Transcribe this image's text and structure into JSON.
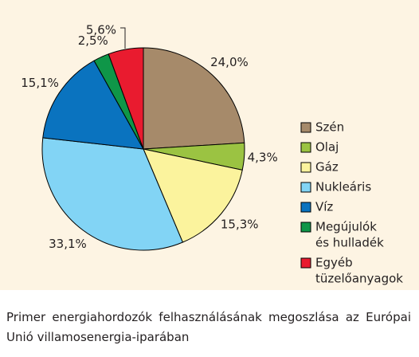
{
  "chart_data": {
    "type": "pie",
    "unit": "%",
    "categories": [
      "Szén",
      "Olaj",
      "Gáz",
      "Nukleáris",
      "Víz",
      "Megújulók és hulladék",
      "Egyéb tüzelőanyagok"
    ],
    "values": [
      24.0,
      4.3,
      15.3,
      33.1,
      15.1,
      2.5,
      5.6
    ],
    "value_labels": [
      "24,0%",
      "4,3%",
      "15,3%",
      "33,1%",
      "15,1%",
      "2,5%",
      "5,6%"
    ],
    "colors": [
      "#A68A6A",
      "#9BC342",
      "#FBF39D",
      "#82D4F5",
      "#0A73BF",
      "#0F9648",
      "#E91B2F"
    ],
    "legend": [
      {
        "lines": [
          "Szén"
        ],
        "color": "#A68A6A"
      },
      {
        "lines": [
          "Olaj"
        ],
        "color": "#9BC342"
      },
      {
        "lines": [
          "Gáz"
        ],
        "color": "#FBF39D"
      },
      {
        "lines": [
          "Nukleáris"
        ],
        "color": "#82D4F5"
      },
      {
        "lines": [
          "Víz"
        ],
        "color": "#0A73BF"
      },
      {
        "lines": [
          "Megújulók",
          "és hulladék"
        ],
        "color": "#0F9648"
      },
      {
        "lines": [
          "Egyéb",
          "tüzelőanyagok"
        ],
        "color": "#E91B2F"
      }
    ],
    "legend_position": "right",
    "start": "12 o'clock",
    "direction": "clockwise",
    "background": "#FDF4E3"
  },
  "caption": "Primer energiahordozók felhasználásának megoszlása az Európai Unió villamosenergia-iparában"
}
